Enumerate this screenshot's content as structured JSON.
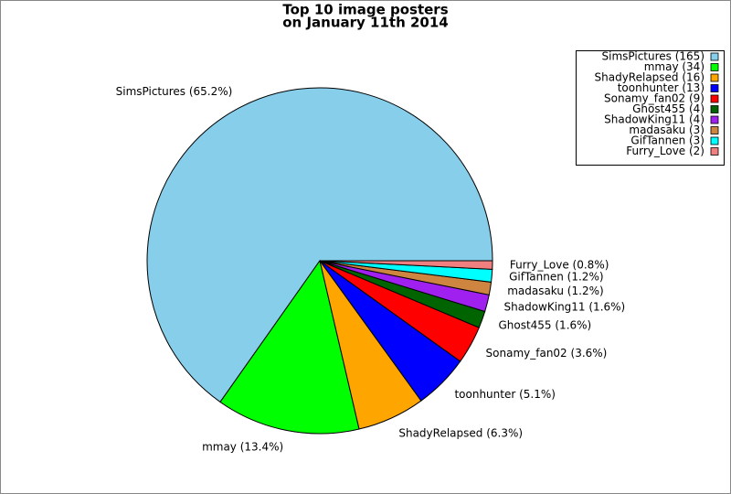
{
  "chart_data": {
    "type": "pie",
    "title": [
      "Top 10 image posters",
      "on January 11th 2014"
    ],
    "categories": [
      "SimsPictures",
      "mmay",
      "ShadyRelapsed",
      "toonhunter",
      "Sonamy_fan02",
      "Ghost455",
      "ShadowKing11",
      "madasaku",
      "GifTannen",
      "Furry_Love"
    ],
    "values": [
      165,
      34,
      16,
      13,
      9,
      4,
      4,
      3,
      3,
      2
    ],
    "legend_labels": [
      "SimsPictures (165)",
      "mmay (34)",
      "ShadyRelapsed (16)",
      "toonhunter (13)",
      "Sonamy_fan02 (9)",
      "Ghost455 (4)",
      "ShadowKing11 (4)",
      "madasaku (3)",
      "GifTannen (3)",
      "Furry_Love (2)"
    ],
    "slice_labels": [
      "SimsPictures (65.2%)",
      "mmay (13.4%)",
      "ShadyRelapsed (6.3%)",
      "toonhunter (5.1%)",
      "Sonamy_fan02 (3.6%)",
      "Ghost455 (1.6%)",
      "ShadowKing11 (1.6%)",
      "madasaku (1.2%)",
      "GifTannen (1.2%)",
      "Furry_Love (0.8%)"
    ],
    "colors": [
      "#87ceeb",
      "#00ff00",
      "#ffa500",
      "#0000ff",
      "#ff0000",
      "#006400",
      "#a020f0",
      "#cd853f",
      "#00ffff",
      "#f08080"
    ],
    "legend": "upper right"
  }
}
